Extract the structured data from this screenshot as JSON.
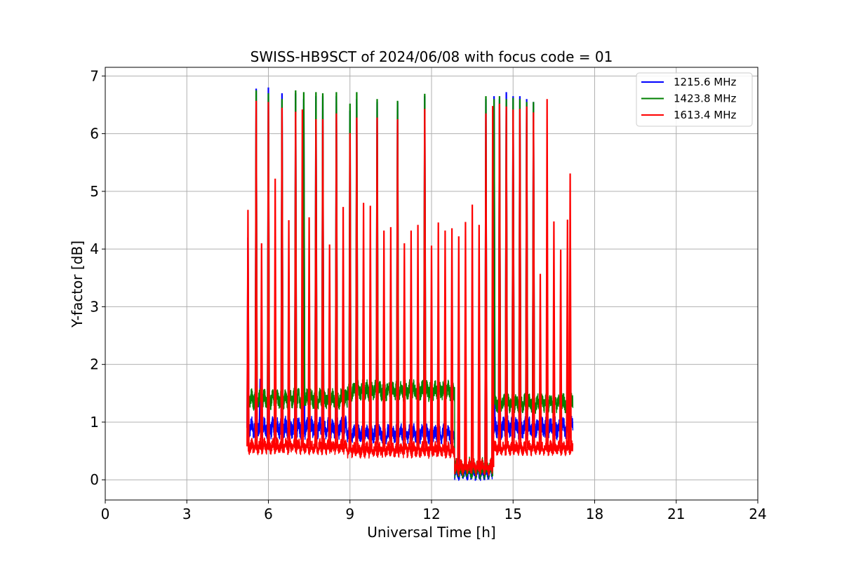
{
  "chart_data": {
    "type": "line",
    "title": "SWISS-HB9SCT of 2024/06/08 with focus code = 01",
    "xlabel": "Universal Time [h]",
    "ylabel": "Y-factor [dB]",
    "xlim": [
      0,
      24
    ],
    "ylim": [
      -0.35,
      7.15
    ],
    "xticks": [
      "0",
      "3",
      "6",
      "9",
      "12",
      "15",
      "18",
      "21",
      "24"
    ],
    "xtick_values": [
      0,
      3,
      6,
      9,
      12,
      15,
      18,
      21,
      24
    ],
    "yticks": [
      "0",
      "1",
      "2",
      "3",
      "4",
      "5",
      "6",
      "7"
    ],
    "ytick_values": [
      0,
      1,
      2,
      3,
      4,
      5,
      6,
      7
    ],
    "grid": true,
    "legend_position": "top-right",
    "time_range": [
      5.25,
      17.2
    ],
    "dip": {
      "start": 12.85,
      "end": 14.25
    },
    "series": [
      {
        "name": "1215.6 MHz",
        "color": "#0000ff",
        "segments": [
          {
            "start": 5.25,
            "end": 8.9,
            "base": 0.9,
            "noise": 0.14
          },
          {
            "start": 8.9,
            "end": 12.85,
            "base": 0.8,
            "noise": 0.12
          },
          {
            "start": 12.85,
            "end": 14.25,
            "base": 0.15,
            "noise": 0.12
          },
          {
            "start": 14.25,
            "end": 17.2,
            "base": 0.9,
            "noise": 0.14
          }
        ],
        "spikes": [
          [
            5.25,
            4.2
          ],
          [
            5.55,
            6.78
          ],
          [
            5.7,
            1.75
          ],
          [
            6.0,
            6.8
          ],
          [
            6.5,
            6.7
          ],
          [
            7.0,
            6.7
          ],
          [
            7.3,
            6.6
          ],
          [
            7.75,
            6.65
          ],
          [
            8.0,
            6.65
          ],
          [
            8.5,
            6.65
          ],
          [
            9.0,
            6.4
          ],
          [
            9.25,
            6.6
          ],
          [
            10.0,
            6.55
          ],
          [
            10.75,
            6.55
          ],
          [
            11.75,
            6.65
          ],
          [
            13.0,
            1.8
          ],
          [
            14.0,
            6.6
          ],
          [
            14.3,
            6.65
          ],
          [
            14.5,
            6.6
          ],
          [
            14.75,
            6.72
          ],
          [
            15.0,
            6.65
          ],
          [
            15.25,
            6.65
          ],
          [
            15.5,
            6.6
          ],
          [
            15.75,
            6.55
          ]
        ]
      },
      {
        "name": "1423.8 MHz",
        "color": "#008000",
        "segments": [
          {
            "start": 5.25,
            "end": 8.9,
            "base": 1.4,
            "noise": 0.13
          },
          {
            "start": 8.9,
            "end": 12.85,
            "base": 1.55,
            "noise": 0.13
          },
          {
            "start": 12.85,
            "end": 14.25,
            "base": 0.2,
            "noise": 0.13
          },
          {
            "start": 14.25,
            "end": 17.2,
            "base": 1.33,
            "noise": 0.12
          }
        ],
        "spikes": [
          [
            5.55,
            6.75
          ],
          [
            6.0,
            6.7
          ],
          [
            6.5,
            6.6
          ],
          [
            7.0,
            6.75
          ],
          [
            7.3,
            6.72
          ],
          [
            7.75,
            6.72
          ],
          [
            8.0,
            6.7
          ],
          [
            8.5,
            6.72
          ],
          [
            9.0,
            6.52
          ],
          [
            9.25,
            6.72
          ],
          [
            10.0,
            6.6
          ],
          [
            10.75,
            6.57
          ],
          [
            11.75,
            6.69
          ],
          [
            14.0,
            6.65
          ],
          [
            14.3,
            6.6
          ],
          [
            14.5,
            6.65
          ],
          [
            14.75,
            6.6
          ],
          [
            15.0,
            6.62
          ],
          [
            15.25,
            6.6
          ],
          [
            15.5,
            6.55
          ],
          [
            15.75,
            6.55
          ]
        ]
      },
      {
        "name": "1613.4 MHz",
        "color": "#ff0000",
        "segments": [
          {
            "start": 5.25,
            "end": 8.9,
            "base": 0.58,
            "noise": 0.1
          },
          {
            "start": 8.9,
            "end": 12.85,
            "base": 0.52,
            "noise": 0.1
          },
          {
            "start": 12.85,
            "end": 14.25,
            "base": 0.22,
            "noise": 0.1
          },
          {
            "start": 14.25,
            "end": 17.2,
            "base": 0.55,
            "noise": 0.09
          }
        ],
        "spikes": [
          [
            5.25,
            4.68
          ],
          [
            5.55,
            6.57
          ],
          [
            5.75,
            4.1
          ],
          [
            6.0,
            6.55
          ],
          [
            6.25,
            5.22
          ],
          [
            6.5,
            6.45
          ],
          [
            6.75,
            4.5
          ],
          [
            7.0,
            6.38
          ],
          [
            7.25,
            6.42
          ],
          [
            7.5,
            4.55
          ],
          [
            7.75,
            6.25
          ],
          [
            8.0,
            6.25
          ],
          [
            8.25,
            4.08
          ],
          [
            8.5,
            6.35
          ],
          [
            8.75,
            4.73
          ],
          [
            9.0,
            6.01
          ],
          [
            9.25,
            6.28
          ],
          [
            9.5,
            4.8
          ],
          [
            9.75,
            4.75
          ],
          [
            10.0,
            6.28
          ],
          [
            10.25,
            4.32
          ],
          [
            10.5,
            4.38
          ],
          [
            10.75,
            6.25
          ],
          [
            11.0,
            4.1
          ],
          [
            11.25,
            4.32
          ],
          [
            11.5,
            4.42
          ],
          [
            11.75,
            6.43
          ],
          [
            12.0,
            4.06
          ],
          [
            12.25,
            4.46
          ],
          [
            12.5,
            4.32
          ],
          [
            12.75,
            4.36
          ],
          [
            13.0,
            4.22
          ],
          [
            13.25,
            4.47
          ],
          [
            13.5,
            4.77
          ],
          [
            13.75,
            4.42
          ],
          [
            14.0,
            6.35
          ],
          [
            14.25,
            6.48
          ],
          [
            14.5,
            6.52
          ],
          [
            14.75,
            6.47
          ],
          [
            15.0,
            6.42
          ],
          [
            15.25,
            6.43
          ],
          [
            15.5,
            6.47
          ],
          [
            15.75,
            6.37
          ],
          [
            16.0,
            3.57
          ],
          [
            16.25,
            6.6
          ],
          [
            16.5,
            4.48
          ],
          [
            16.75,
            3.99
          ],
          [
            17.0,
            4.51
          ],
          [
            17.1,
            5.31
          ]
        ]
      }
    ]
  }
}
